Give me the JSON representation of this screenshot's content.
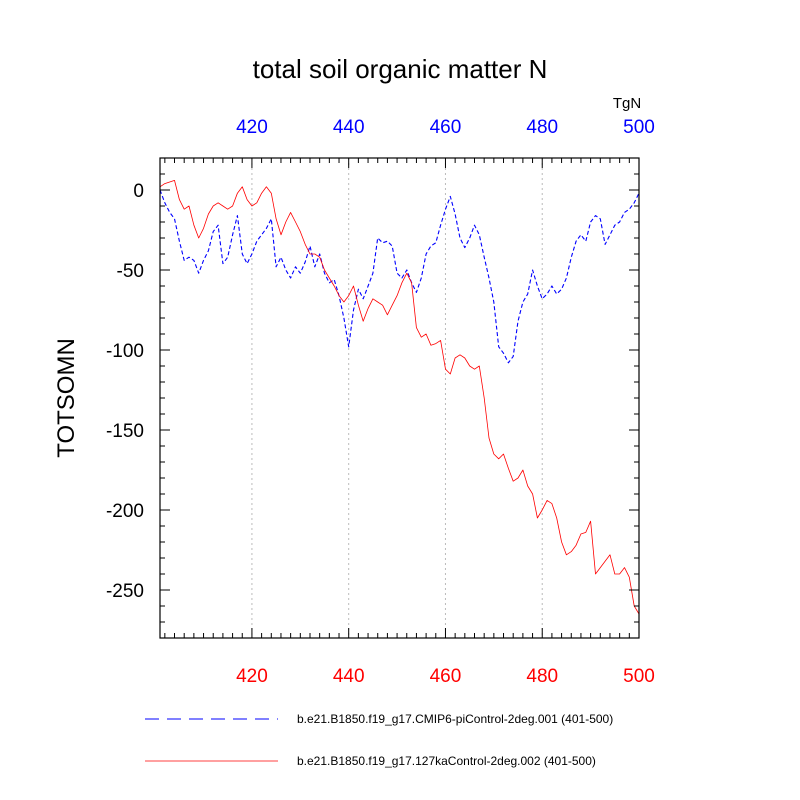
{
  "chart_data": {
    "type": "line",
    "title": "total soil organic matter N",
    "ylabel": "TOTSOMN",
    "units": "TgN",
    "xlim": [
      401,
      500
    ],
    "ylim": [
      -280,
      20
    ],
    "x_ticks": [
      420,
      440,
      460,
      480,
      500
    ],
    "y_ticks": [
      0,
      -50,
      -100,
      -150,
      -200,
      -250
    ],
    "x_tick_labels": [
      "420",
      "440",
      "460",
      "480",
      "500"
    ],
    "y_tick_labels": [
      "0",
      "-50",
      "-100",
      "-150",
      "-200",
      "-250"
    ],
    "colors": {
      "axis_bottom": "#ff0000",
      "axis_top": "#0000ff",
      "series_dashed": "#0000ff",
      "series_solid": "#ff0000",
      "grid": "#bbbbbb"
    },
    "x": [
      401,
      402,
      403,
      404,
      405,
      406,
      407,
      408,
      409,
      410,
      411,
      412,
      413,
      414,
      415,
      416,
      417,
      418,
      419,
      420,
      421,
      422,
      423,
      424,
      425,
      426,
      427,
      428,
      429,
      430,
      431,
      432,
      433,
      434,
      435,
      436,
      437,
      438,
      439,
      440,
      441,
      442,
      443,
      444,
      445,
      446,
      447,
      448,
      449,
      450,
      451,
      452,
      453,
      454,
      455,
      456,
      457,
      458,
      459,
      460,
      461,
      462,
      463,
      464,
      465,
      466,
      467,
      468,
      469,
      470,
      471,
      472,
      473,
      474,
      475,
      476,
      477,
      478,
      479,
      480,
      481,
      482,
      483,
      484,
      485,
      486,
      487,
      488,
      489,
      490,
      491,
      492,
      493,
      494,
      495,
      496,
      497,
      498,
      499,
      500
    ],
    "series": [
      {
        "name": "b.e21.B1850.f19_g17.CMIP6-piControl-2deg.001 (401-500)",
        "style": "dashed",
        "values": [
          0,
          -8,
          -14,
          -18,
          -32,
          -44,
          -42,
          -44,
          -52,
          -44,
          -38,
          -26,
          -22,
          -46,
          -42,
          -28,
          -16,
          -40,
          -46,
          -40,
          -32,
          -28,
          -24,
          -18,
          -48,
          -42,
          -50,
          -55,
          -48,
          -52,
          -45,
          -35,
          -48,
          -40,
          -52,
          -58,
          -56,
          -66,
          -80,
          -98,
          -75,
          -62,
          -68,
          -60,
          -52,
          -30,
          -33,
          -32,
          -35,
          -52,
          -55,
          -50,
          -58,
          -64,
          -55,
          -40,
          -35,
          -33,
          -22,
          -12,
          -4,
          -15,
          -30,
          -36,
          -30,
          -22,
          -28,
          -42,
          -55,
          -70,
          -98,
          -102,
          -108,
          -104,
          -82,
          -70,
          -65,
          -50,
          -60,
          -68,
          -65,
          -60,
          -65,
          -62,
          -55,
          -42,
          -32,
          -28,
          -32,
          -20,
          -16,
          -18,
          -34,
          -28,
          -22,
          -20,
          -14,
          -12,
          -8,
          -2
        ]
      },
      {
        "name": "b.e21.B1850.f19_g17.127kaControl-2deg.002 (401-500)",
        "style": "solid",
        "values": [
          2,
          4,
          5,
          6,
          -6,
          -12,
          -10,
          -22,
          -30,
          -24,
          -15,
          -10,
          -8,
          -10,
          -12,
          -10,
          -2,
          2,
          -6,
          -10,
          -8,
          -2,
          2,
          -2,
          -18,
          -28,
          -20,
          -14,
          -20,
          -26,
          -34,
          -40,
          -40,
          -42,
          -50,
          -55,
          -60,
          -66,
          -70,
          -66,
          -60,
          -72,
          -82,
          -74,
          -68,
          -70,
          -72,
          -78,
          -72,
          -66,
          -58,
          -52,
          -58,
          -86,
          -92,
          -90,
          -97,
          -96,
          -94,
          -112,
          -115,
          -105,
          -103,
          -105,
          -110,
          -112,
          -110,
          -130,
          -155,
          -165,
          -168,
          -165,
          -174,
          -182,
          -180,
          -175,
          -185,
          -190,
          -205,
          -200,
          -194,
          -196,
          -205,
          -220,
          -228,
          -226,
          -222,
          -215,
          -214,
          -207,
          -240,
          -236,
          -232,
          -228,
          -240,
          -240,
          -236,
          -242,
          -260,
          -265
        ]
      }
    ]
  }
}
